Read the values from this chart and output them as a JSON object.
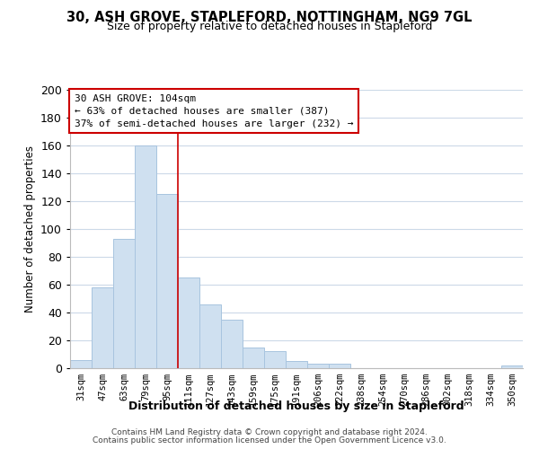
{
  "title_line1": "30, ASH GROVE, STAPLEFORD, NOTTINGHAM, NG9 7GL",
  "title_line2": "Size of property relative to detached houses in Stapleford",
  "xlabel": "Distribution of detached houses by size in Stapleford",
  "ylabel": "Number of detached properties",
  "bar_color": "#cfe0f0",
  "bar_edge_color": "#a8c4df",
  "categories": [
    "31sqm",
    "47sqm",
    "63sqm",
    "79sqm",
    "95sqm",
    "111sqm",
    "127sqm",
    "143sqm",
    "159sqm",
    "175sqm",
    "191sqm",
    "206sqm",
    "222sqm",
    "238sqm",
    "254sqm",
    "270sqm",
    "286sqm",
    "302sqm",
    "318sqm",
    "334sqm",
    "350sqm"
  ],
  "values": [
    6,
    58,
    93,
    160,
    125,
    65,
    46,
    35,
    15,
    12,
    5,
    3,
    3,
    0,
    0,
    0,
    0,
    0,
    0,
    0,
    2
  ],
  "ylim": [
    0,
    200
  ],
  "yticks": [
    0,
    20,
    40,
    60,
    80,
    100,
    120,
    140,
    160,
    180,
    200
  ],
  "vline_x_idx": 5,
  "vline_color": "#cc0000",
  "annotation_line1": "30 ASH GROVE: 104sqm",
  "annotation_line2": "← 63% of detached houses are smaller (387)",
  "annotation_line3": "37% of semi-detached houses are larger (232) →",
  "annotation_box_color": "#ffffff",
  "annotation_box_edge": "#cc0000",
  "footer_line1": "Contains HM Land Registry data © Crown copyright and database right 2024.",
  "footer_line2": "Contains public sector information licensed under the Open Government Licence v3.0.",
  "background_color": "#ffffff",
  "grid_color": "#ccd9e8"
}
